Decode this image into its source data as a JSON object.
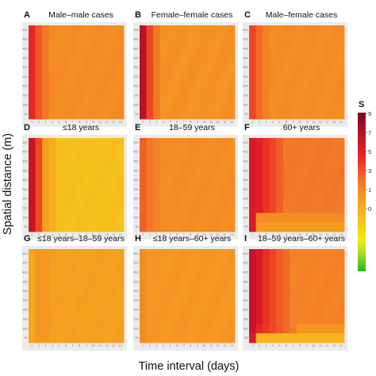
{
  "chart_data": {
    "type": "heatmap",
    "xlabel": "Time interval (days)",
    "ylabel": "Spatial distance (m)",
    "x": [
      "1",
      "2",
      "3",
      "4",
      "5",
      "6",
      "7",
      "8",
      "9",
      "10",
      "11",
      "12",
      "13",
      "14"
    ],
    "y": [
      "50",
      "100",
      "150",
      "200",
      "250",
      "300",
      "350",
      "400",
      "450",
      "500"
    ],
    "legend": {
      "title": "S",
      "labels": [
        "9",
        "7",
        "5",
        "3",
        "1",
        "0",
        "",
        "",
        ""
      ],
      "colors": [
        "#7a0c18",
        "#b2112a",
        "#e8262a",
        "#f27a2a",
        "#f5a61f",
        "#f6c51c",
        "#f4ea12",
        "#9ad92a",
        "#1fb51f"
      ],
      "placement": "right"
    },
    "panels": [
      {
        "letter": "A",
        "title": "Male–male cases",
        "base": 0.42,
        "cols": [
          0.24,
          0.33,
          0.38
        ]
      },
      {
        "letter": "B",
        "title": "Female–female cases",
        "base": 0.43,
        "cols": [
          0.13,
          0.3,
          0.38
        ]
      },
      {
        "letter": "C",
        "title": "Male–female cases",
        "base": 0.42,
        "cols": [
          0.3,
          0.36,
          0.4
        ]
      },
      {
        "letter": "D",
        "title": "≤18 years",
        "base": 0.55,
        "cols": [
          0.16,
          0.3,
          0.46,
          0.5
        ]
      },
      {
        "letter": "E",
        "title": "18–59 years",
        "base": 0.42,
        "cols": [
          0.34,
          0.38,
          0.4
        ]
      },
      {
        "letter": "F",
        "title": "60+ years",
        "base": 0.38,
        "cols": [
          0.2,
          0.22,
          0.26,
          0.3,
          0.34
        ],
        "bottomCorner": true
      },
      {
        "letter": "G",
        "title": "≤18 years–18–59 years",
        "base": 0.46,
        "cols": [
          0.48,
          0.44,
          0.44
        ]
      },
      {
        "letter": "H",
        "title": "≤18 years–60+ years",
        "base": 0.44,
        "cols": [
          0.42,
          0.44
        ]
      },
      {
        "letter": "I",
        "title": "18–59 years–60+ years",
        "base": 0.4,
        "cols": [
          0.16,
          0.2,
          0.26,
          0.3,
          0.34,
          0.36
        ],
        "bottomCorner": true,
        "diag": true
      }
    ]
  }
}
